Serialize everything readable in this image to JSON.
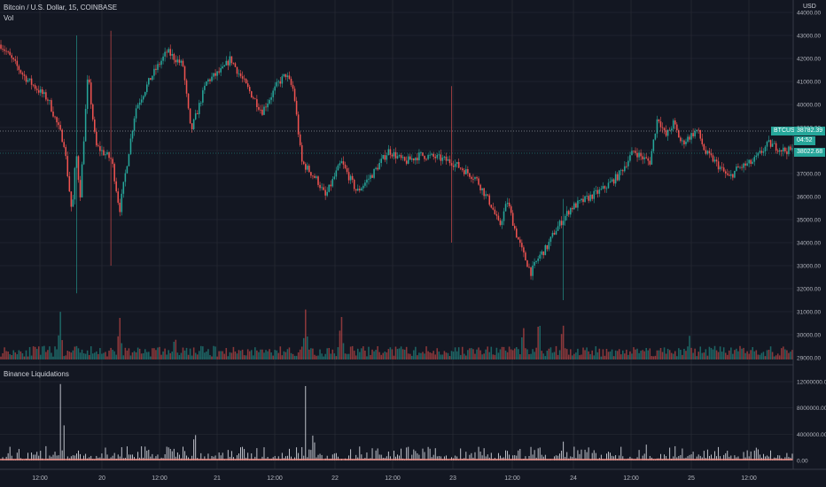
{
  "header": {
    "symbol_line": "Bitcoin / U.S. Dollar, 15, COINBASE",
    "volume_label": "Vol",
    "currency": "USD"
  },
  "price_tag": {
    "symbol": "BTCUSD",
    "price": "38782.39",
    "countdown": "04:52",
    "line_price": "38022.68"
  },
  "sub_pane": {
    "title": "Binance Liquidations"
  },
  "colors": {
    "up": "#26a69a",
    "down": "#ef5350",
    "background": "#131722",
    "grid": "#2a2e39",
    "liq": "#d1d4dc",
    "liq_base": "#f28b82"
  },
  "chart_data": [
    {
      "type": "candlestick",
      "title": "Bitcoin / U.S. Dollar, 15, COINBASE",
      "y_ticks": [
        "44000.00",
        "43000.00",
        "42000.00",
        "41000.00",
        "40000.00",
        "39000.00",
        "38000.00",
        "37000.00",
        "36000.00",
        "35000.00",
        "34000.00",
        "33000.00",
        "32000.00",
        "31000.00",
        "30000.00",
        "29000.00"
      ],
      "x_ticks": [
        "12:00",
        "20",
        "12:00",
        "21",
        "12:00",
        "22",
        "12:00",
        "23",
        "12:00",
        "24",
        "12:00",
        "25",
        "12:00"
      ],
      "ylim": [
        29000,
        44000
      ],
      "path": [
        [
          0,
          42600
        ],
        [
          0.03,
          41200
        ],
        [
          0.06,
          40200
        ],
        [
          0.08,
          38300
        ],
        [
          0.09,
          35200
        ],
        [
          0.095,
          38000
        ],
        [
          0.1,
          36000
        ],
        [
          0.11,
          41300
        ],
        [
          0.12,
          38200
        ],
        [
          0.14,
          37600
        ],
        [
          0.15,
          35400
        ],
        [
          0.17,
          39800
        ],
        [
          0.19,
          41200
        ],
        [
          0.21,
          42300
        ],
        [
          0.23,
          41700
        ],
        [
          0.24,
          38800
        ],
        [
          0.26,
          41000
        ],
        [
          0.28,
          41500
        ],
        [
          0.29,
          42000
        ],
        [
          0.31,
          40800
        ],
        [
          0.33,
          39700
        ],
        [
          0.35,
          40900
        ],
        [
          0.36,
          41300
        ],
        [
          0.37,
          40600
        ],
        [
          0.38,
          37500
        ],
        [
          0.4,
          36700
        ],
        [
          0.41,
          36000
        ],
        [
          0.43,
          37500
        ],
        [
          0.45,
          36200
        ],
        [
          0.47,
          37000
        ],
        [
          0.49,
          38000
        ],
        [
          0.51,
          37500
        ],
        [
          0.53,
          37800
        ],
        [
          0.55,
          37700
        ],
        [
          0.57,
          37500
        ],
        [
          0.6,
          36800
        ],
        [
          0.62,
          35600
        ],
        [
          0.63,
          34700
        ],
        [
          0.64,
          35800
        ],
        [
          0.65,
          34500
        ],
        [
          0.66,
          33500
        ],
        [
          0.67,
          32700
        ],
        [
          0.68,
          33400
        ],
        [
          0.69,
          33800
        ],
        [
          0.7,
          34500
        ],
        [
          0.72,
          35500
        ],
        [
          0.74,
          35900
        ],
        [
          0.76,
          36300
        ],
        [
          0.78,
          36900
        ],
        [
          0.8,
          38000
        ],
        [
          0.81,
          37700
        ],
        [
          0.82,
          37500
        ],
        [
          0.83,
          39500
        ],
        [
          0.84,
          38600
        ],
        [
          0.85,
          39200
        ],
        [
          0.86,
          38300
        ],
        [
          0.87,
          38600
        ],
        [
          0.88,
          38900
        ],
        [
          0.89,
          37900
        ],
        [
          0.9,
          37600
        ],
        [
          0.92,
          36800
        ],
        [
          0.93,
          37200
        ],
        [
          0.95,
          37500
        ],
        [
          0.97,
          38300
        ],
        [
          0.99,
          38000
        ]
      ],
      "spikes": [
        {
          "x": 0.095,
          "low": 31800,
          "high": 43000
        },
        {
          "x": 0.14,
          "low": 33000,
          "high": 43200
        },
        {
          "x": 0.57,
          "low": 34000,
          "high": 40800
        },
        {
          "x": 0.71,
          "low": 31500,
          "high": 35900
        }
      ]
    },
    {
      "type": "bar",
      "title": "Vol",
      "ylim": [
        0,
        1
      ],
      "peaks": [
        {
          "x": 0.075,
          "value": 1.0
        },
        {
          "x": 0.15,
          "value": 0.9
        },
        {
          "x": 0.22,
          "value": 0.5
        },
        {
          "x": 0.385,
          "value": 1.0
        },
        {
          "x": 0.43,
          "value": 1.0
        },
        {
          "x": 0.66,
          "value": 0.7
        },
        {
          "x": 0.68,
          "value": 0.9
        },
        {
          "x": 0.71,
          "value": 0.8
        },
        {
          "x": 0.87,
          "value": 0.5
        }
      ]
    },
    {
      "type": "bar",
      "title": "Binance Liquidations",
      "y_ticks": [
        "12000000.00",
        "8000000.00",
        "4000000.00",
        "0.00"
      ],
      "ylim": [
        0,
        13500000
      ],
      "peaks": [
        {
          "x": 0.075,
          "value": 12500000
        },
        {
          "x": 0.08,
          "value": 6000000
        },
        {
          "x": 0.245,
          "value": 6500000
        },
        {
          "x": 0.385,
          "value": 11500000
        },
        {
          "x": 0.395,
          "value": 6000000
        },
        {
          "x": 0.655,
          "value": 3000000
        },
        {
          "x": 0.68,
          "value": 3500000
        },
        {
          "x": 0.71,
          "value": 4000000
        },
        {
          "x": 0.815,
          "value": 3000000
        },
        {
          "x": 0.955,
          "value": 2500000
        }
      ]
    }
  ]
}
